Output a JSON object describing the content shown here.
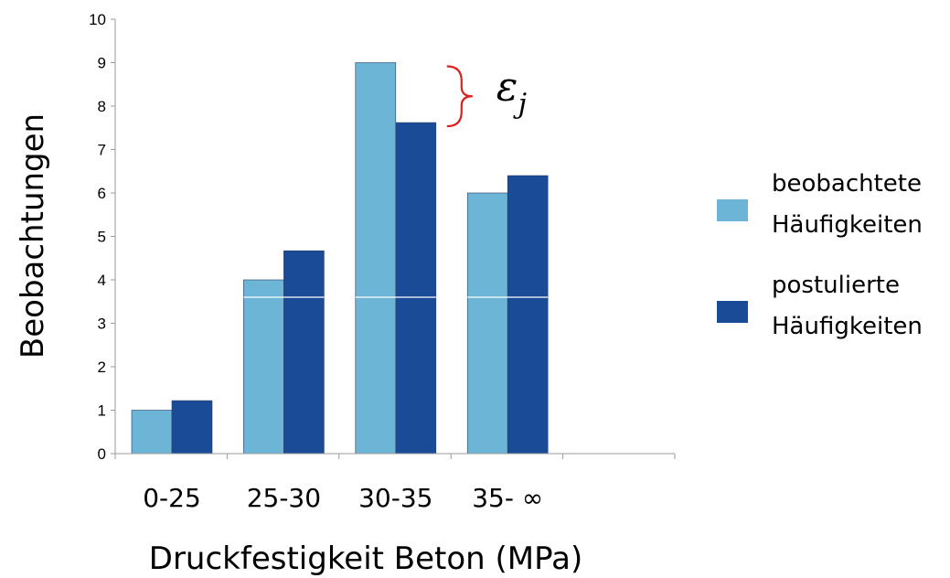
{
  "chart_data": {
    "type": "bar",
    "categories": [
      "0-25",
      "25-30",
      "30-35",
      "35- ∞",
      ""
    ],
    "series": [
      {
        "name": "beobachtete Häufigkeiten",
        "legend_lines": [
          "beobachtete",
          "Häufigkeiten"
        ],
        "values": [
          1,
          4,
          9,
          6,
          null
        ],
        "color": "#6db5d7"
      },
      {
        "name": "postulierte Häufigkeiten",
        "legend_lines": [
          "postulierte",
          "Häufigkeiten"
        ],
        "values": [
          1.22,
          4.67,
          7.62,
          6.4,
          null
        ],
        "color": "#1a4b96"
      }
    ],
    "title": "",
    "xlabel": "Druckfestigkeit Beton (MPa)",
    "ylabel": "Beobachtungen",
    "ylim": [
      0,
      10
    ],
    "yticks": [
      0,
      1,
      2,
      3,
      4,
      5,
      6,
      7,
      8,
      9,
      10
    ],
    "grid": false,
    "legend_position": "right",
    "annotation": {
      "symbol": "ε",
      "subscript": "j",
      "category": "30-35",
      "color": "#e02020"
    }
  }
}
